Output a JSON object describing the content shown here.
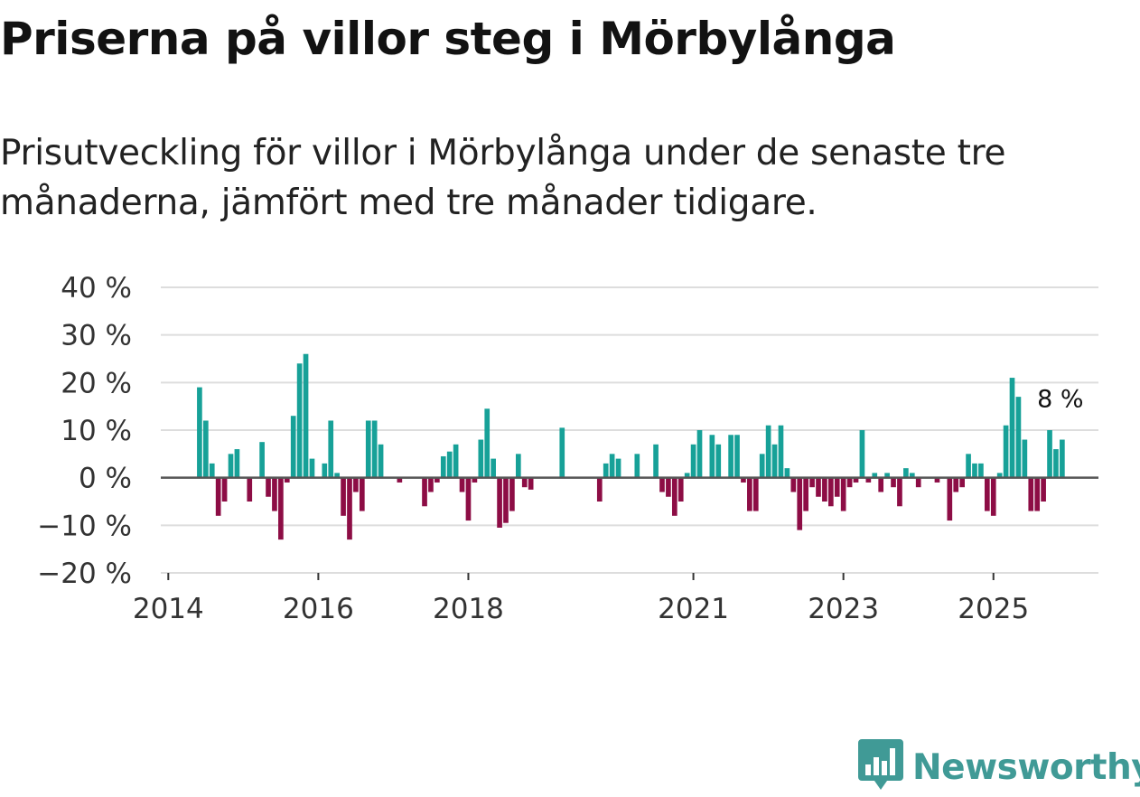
{
  "title": "Priserna på villor steg i Mörbylånga",
  "subtitle": "Prisutveckling för villor i Mörbylånga under de senaste tre månaderna, jämfört med tre månader tidigare.",
  "colors": {
    "positive": "#17a198",
    "negative": "#8d0d45",
    "zero_line": "#555555",
    "grid": "#dddddd",
    "logo": "#409a96"
  },
  "logo": {
    "text": "Newsworthy",
    "icon": "bar-chart-badge-icon"
  },
  "chart_data": {
    "type": "bar",
    "title": "Priserna på villor steg i Mörbylånga",
    "xlabel": "",
    "ylabel": "",
    "unit": "%",
    "ylim": [
      -20,
      40
    ],
    "xlim": [
      2013.9,
      2026.4
    ],
    "yticks": [
      {
        "value": 40,
        "label": "40 %"
      },
      {
        "value": 30,
        "label": "30 %"
      },
      {
        "value": 20,
        "label": "20 %"
      },
      {
        "value": 10,
        "label": "10 %"
      },
      {
        "value": 0,
        "label": "0 %"
      },
      {
        "value": -10,
        "label": "−10 %"
      },
      {
        "value": -20,
        "label": "−20 %"
      }
    ],
    "xticks": [
      {
        "value": 2014,
        "label": "2014"
      },
      {
        "value": 2016,
        "label": "2016"
      },
      {
        "value": 2018,
        "label": "2018"
      },
      {
        "value": 2021,
        "label": "2021"
      },
      {
        "value": 2023,
        "label": "2023"
      },
      {
        "value": 2025,
        "label": "2025"
      }
    ],
    "start": {
      "year": 2014,
      "month": 6
    },
    "values": [
      19,
      12,
      3,
      -8,
      -5,
      5,
      6,
      0,
      -5,
      0,
      7.5,
      -4,
      -7,
      -13,
      -1,
      13,
      24,
      26,
      4,
      0,
      3,
      12,
      1,
      -8,
      -13,
      -3,
      -7,
      12,
      12,
      7,
      0,
      0,
      -1,
      0,
      0,
      0,
      -6,
      -3,
      -1,
      4.5,
      5.5,
      7,
      -3,
      -9,
      -1,
      8,
      14.5,
      4,
      -10.5,
      -9.5,
      -7,
      5,
      -2,
      -2.5,
      0,
      0,
      0,
      0,
      10.5,
      0,
      0,
      0,
      0,
      0,
      -5,
      3,
      5,
      4,
      0,
      0,
      5,
      0,
      0,
      7,
      -3,
      -4,
      -8,
      -5,
      1,
      7,
      10,
      0,
      9,
      7,
      0,
      9,
      9,
      -1,
      -7,
      -7,
      5,
      11,
      7,
      11,
      2,
      -3,
      -11,
      -7,
      -2,
      -4,
      -5,
      -6,
      -4,
      -7,
      -2,
      -1,
      10,
      -1,
      1,
      -3,
      1,
      -2,
      -6,
      2,
      1,
      -2,
      0,
      0,
      -1,
      0,
      -9,
      -3,
      -2,
      5,
      3,
      3,
      -7,
      -8,
      1,
      11,
      21,
      17,
      8,
      -7,
      -7,
      -5,
      10,
      6,
      8
    ],
    "annotation": {
      "label": "8 %",
      "value": 8,
      "position": "above last bar"
    }
  }
}
